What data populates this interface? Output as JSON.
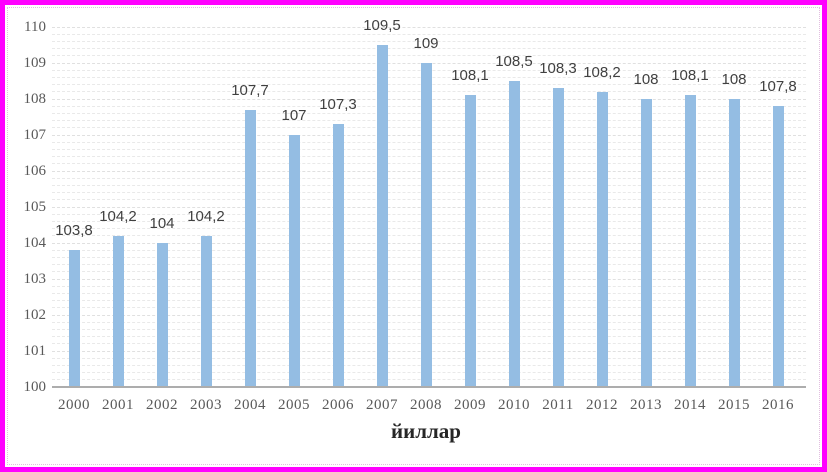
{
  "page": {
    "background": "#FFFFFF",
    "outer_border_color": "#FF00FF",
    "inner_border_color": "#E2BEE0"
  },
  "chart_data": {
    "type": "bar",
    "title": "",
    "xlabel": "йиллар",
    "ylabel": "",
    "categories": [
      "2000",
      "2001",
      "2002",
      "2003",
      "2004",
      "2005",
      "2006",
      "2007",
      "2008",
      "2009",
      "2010",
      "2011",
      "2012",
      "2013",
      "2014",
      "2015",
      "2016"
    ],
    "values": [
      103.8,
      104.2,
      104,
      104.2,
      107.7,
      107,
      107.3,
      109.5,
      109,
      108.1,
      108.5,
      108.3,
      108.2,
      108,
      108.1,
      108,
      107.8
    ],
    "value_labels": [
      "103,8",
      "104,2",
      "104",
      "104,2",
      "107,7",
      "107",
      "107,3",
      "109,5",
      "109",
      "108,1",
      "108,5",
      "108,3",
      "108,2",
      "108",
      "108,1",
      "108",
      "107,8"
    ],
    "ylim": [
      100,
      110
    ],
    "yticks": [
      "100",
      "101",
      "102",
      "103",
      "104",
      "105",
      "106",
      "107",
      "108",
      "109",
      "110"
    ],
    "minor_grid_step": 0.2,
    "grid": true,
    "legend_position": "none",
    "decimal_separator": ",",
    "bar_color": "#94BDE3",
    "value_label_color": "#404040",
    "axis_text_color": "#595959",
    "axis_line_color": "#ADADAD",
    "gridline_color": "#E9E9E9"
  }
}
